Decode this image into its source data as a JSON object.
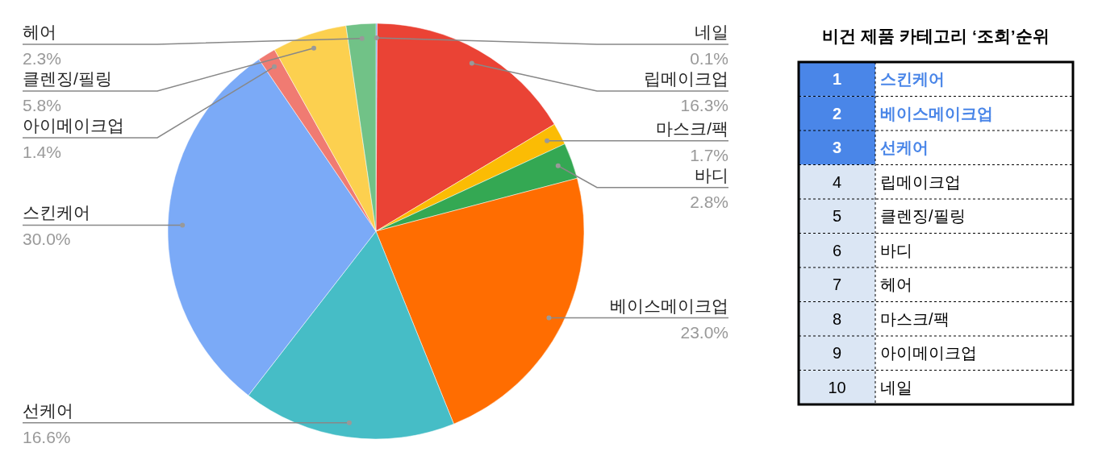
{
  "chart_data": [
    {
      "type": "pie",
      "categories": [
        "네일",
        "립메이크업",
        "마스크/팩",
        "바디",
        "베이스메이크업",
        "선케어",
        "스킨케어",
        "아이메이크업",
        "클렌징/필링",
        "헤어"
      ],
      "values": [
        0.1,
        16.3,
        1.7,
        2.8,
        23.0,
        16.6,
        30.0,
        1.4,
        5.8,
        2.3
      ],
      "value_labels": [
        "0.1%",
        "16.3%",
        "1.7%",
        "2.8%",
        "23.0%",
        "16.6%",
        "30.0%",
        "1.4%",
        "5.8%",
        "2.3%"
      ],
      "colors": [
        "#4285f4",
        "#ea4335",
        "#fbbc04",
        "#34a853",
        "#ff6d01",
        "#46bdc6",
        "#7baaf7",
        "#f07b72",
        "#fcd04f",
        "#71c287"
      ]
    },
    {
      "type": "other",
      "title": "비건 제품 카테고리 ‘조회’순위",
      "categories": [
        "스킨케어",
        "베이스메이크업",
        "선케어",
        "립메이크업",
        "클렌징/필링",
        "바디",
        "헤어",
        "마스크/팩",
        "아이메이크업",
        "네일"
      ],
      "values": [
        1,
        2,
        3,
        4,
        5,
        6,
        7,
        8,
        9,
        10
      ],
      "data_labels": true,
      "colors": [
        "#4a86e8",
        "#4a86e8",
        "#4a86e8",
        "#dbe6f4",
        "#dbe6f4",
        "#dbe6f4",
        "#dbe6f4",
        "#dbe6f4",
        "#dbe6f4",
        "#dbe6f4"
      ]
    }
  ]
}
